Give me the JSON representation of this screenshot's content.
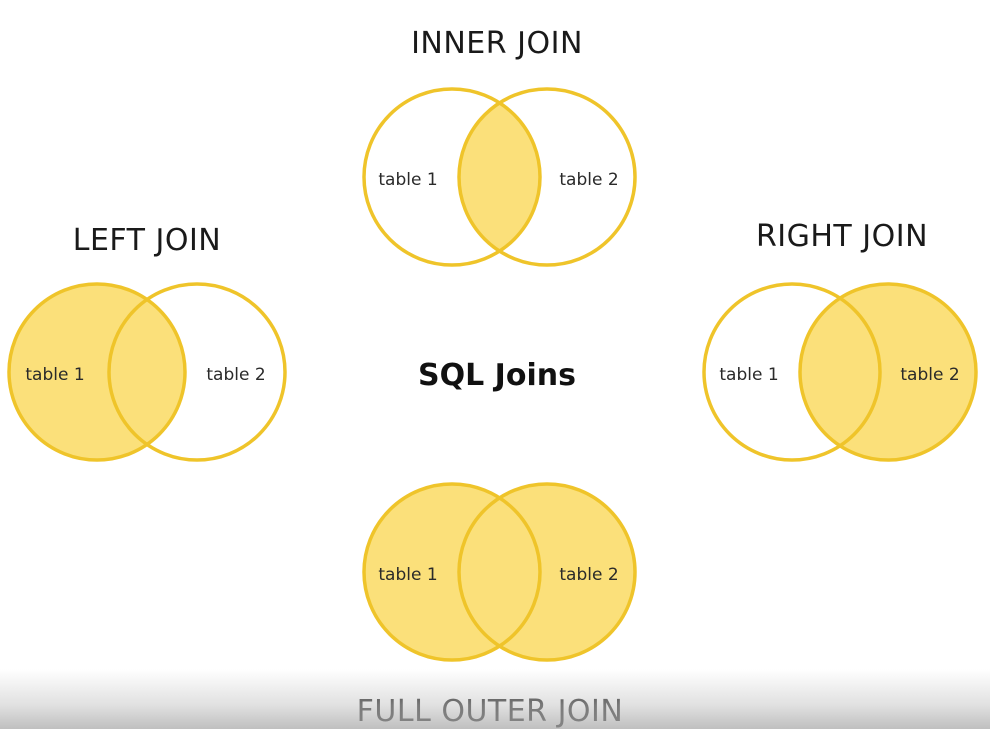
{
  "center_title": "SQL Joins",
  "colors": {
    "stroke": "#EFC42A",
    "fill": "#FBE07A",
    "background": "#FFFFFF",
    "text": "#1A1A1A"
  },
  "diagrams": [
    {
      "id": "inner",
      "title": "INNER JOIN",
      "left_label": "table 1",
      "right_label": "table 2",
      "highlight": "intersection"
    },
    {
      "id": "left",
      "title": "LEFT JOIN",
      "left_label": "table 1",
      "right_label": "table 2",
      "highlight": "left"
    },
    {
      "id": "right",
      "title": "RIGHT JOIN",
      "left_label": "table 1",
      "right_label": "table 2",
      "highlight": "right"
    },
    {
      "id": "full",
      "title": "FULL OUTER JOIN",
      "left_label": "table 1",
      "right_label": "table 2",
      "highlight": "both"
    }
  ]
}
